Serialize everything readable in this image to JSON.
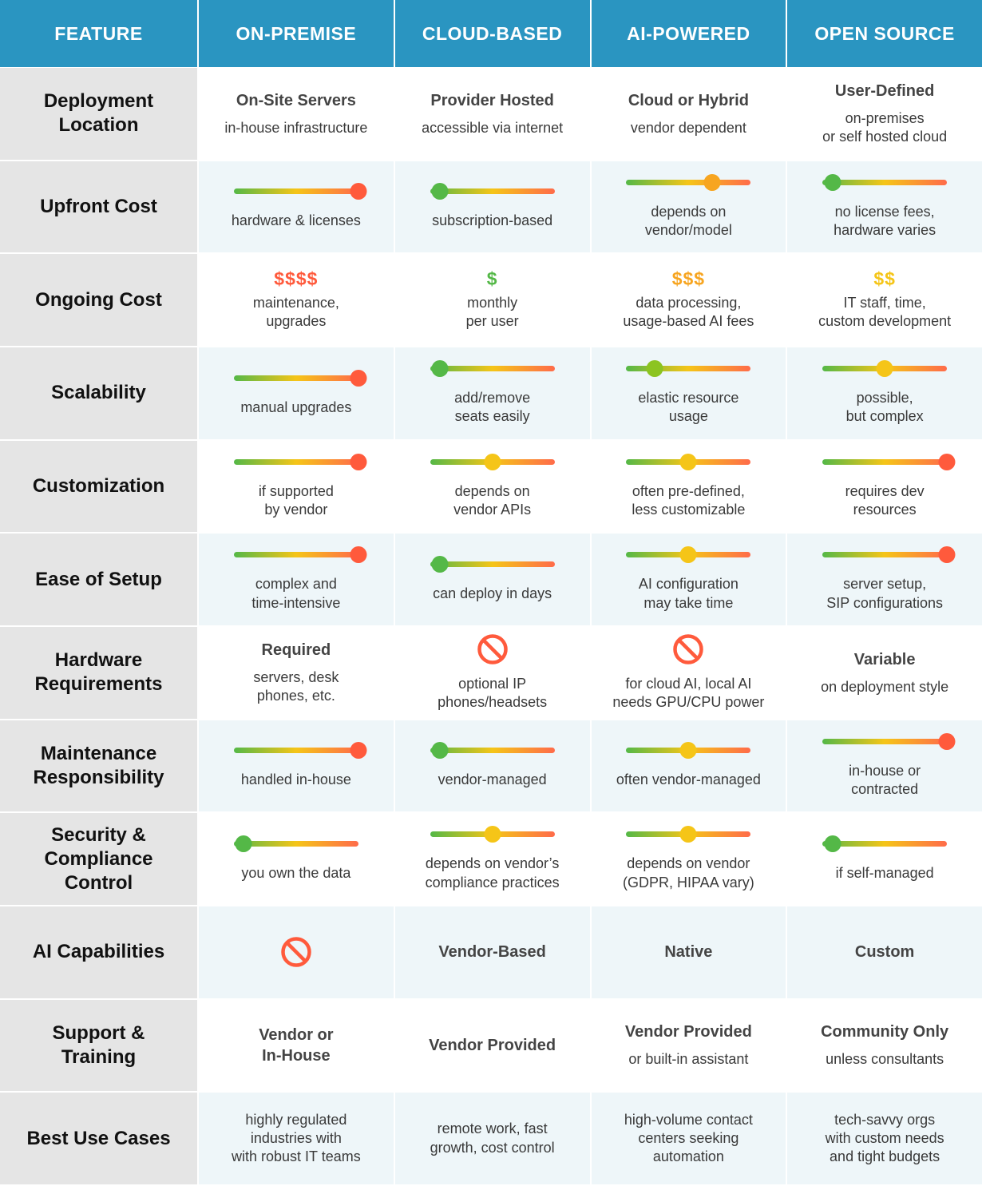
{
  "header": {
    "feature": "FEATURE",
    "columns": [
      "ON-PREMISE",
      "CLOUD-BASED",
      "AI-POWERED",
      "OPEN SOURCE"
    ]
  },
  "scale_colors": {
    "low": "#54b847",
    "mid": "#f5c518",
    "high": "#ff6b4a"
  },
  "rows": [
    {
      "feature": "Deployment\nLocation",
      "shade": "w",
      "cells": [
        {
          "type": "text",
          "title": "On-Site Servers",
          "desc": "in-house infrastructure"
        },
        {
          "type": "text",
          "title": "Provider Hosted",
          "desc": "accessible via internet"
        },
        {
          "type": "text",
          "title": "Cloud or Hybrid",
          "desc": "vendor dependent"
        },
        {
          "type": "text",
          "title": "User-Defined",
          "desc": "on-premises\nor self hosted cloud"
        }
      ]
    },
    {
      "feature": "Upfront Cost",
      "shade": "b",
      "cells": [
        {
          "type": "scale",
          "level": 1.0,
          "color": "#ff5a3c",
          "desc": "hardware & licenses"
        },
        {
          "type": "scale",
          "level": 0.08,
          "color": "#54b847",
          "desc": "subscription-based"
        },
        {
          "type": "scale",
          "level": 0.69,
          "color": "#f7a520",
          "desc": "depends on\nvendor/model"
        },
        {
          "type": "scale",
          "level": 0.08,
          "color": "#54b847",
          "desc": "no license fees,\nhardware varies"
        }
      ]
    },
    {
      "feature": "Ongoing Cost",
      "shade": "w",
      "cells": [
        {
          "type": "dollar",
          "dollars": "$$$$",
          "color": "#ff5a3c",
          "desc": "maintenance,\nupgrades"
        },
        {
          "type": "dollar",
          "dollars": "$",
          "color": "#54b847",
          "desc": "monthly\nper user"
        },
        {
          "type": "dollar",
          "dollars": "$$$",
          "color": "#f7a520",
          "desc": "data processing,\nusage-based AI fees"
        },
        {
          "type": "dollar",
          "dollars": "$$",
          "color": "#f5c518",
          "desc": "IT staff, time,\ncustom development"
        }
      ]
    },
    {
      "feature": "Scalability",
      "shade": "b",
      "cells": [
        {
          "type": "scale",
          "level": 1.0,
          "color": "#ff5a3c",
          "desc": "manual upgrades"
        },
        {
          "type": "scale",
          "level": 0.08,
          "color": "#54b847",
          "desc": "add/remove\nseats easily"
        },
        {
          "type": "scale",
          "level": 0.23,
          "color": "#8cc421",
          "desc": "elastic resource\nusage"
        },
        {
          "type": "scale",
          "level": 0.5,
          "color": "#f5c518",
          "desc": "possible,\nbut complex"
        }
      ]
    },
    {
      "feature": "Customization",
      "shade": "w",
      "cells": [
        {
          "type": "scale",
          "level": 1.0,
          "color": "#ff5a3c",
          "desc": "if supported\nby vendor"
        },
        {
          "type": "scale",
          "level": 0.5,
          "color": "#f5c518",
          "desc": "depends on\nvendor APIs"
        },
        {
          "type": "scale",
          "level": 0.5,
          "color": "#f5c518",
          "desc": "often pre-defined,\nless customizable"
        },
        {
          "type": "scale",
          "level": 1.0,
          "color": "#ff5a3c",
          "desc": "requires dev\nresources"
        }
      ]
    },
    {
      "feature": "Ease of Setup",
      "shade": "b",
      "cells": [
        {
          "type": "scale",
          "level": 1.0,
          "color": "#ff5a3c",
          "desc": "complex and\ntime-intensive"
        },
        {
          "type": "scale",
          "level": 0.08,
          "color": "#54b847",
          "desc": "can deploy in days"
        },
        {
          "type": "scale",
          "level": 0.5,
          "color": "#f5c518",
          "desc": "AI configuration\nmay take time"
        },
        {
          "type": "scale",
          "level": 1.0,
          "color": "#ff5a3c",
          "desc": "server setup,\nSIP configurations"
        }
      ]
    },
    {
      "feature": "Hardware\nRequirements",
      "shade": "w",
      "cells": [
        {
          "type": "text",
          "title": "Required",
          "desc": "servers, desk\nphones, etc."
        },
        {
          "type": "no",
          "desc": "optional IP\nphones/headsets"
        },
        {
          "type": "no",
          "desc": "for cloud AI, local AI\nneeds GPU/CPU power"
        },
        {
          "type": "text",
          "title": "Variable",
          "desc": "on deployment style"
        }
      ]
    },
    {
      "feature": "Maintenance\nResponsibility",
      "shade": "b",
      "cells": [
        {
          "type": "scale",
          "level": 1.0,
          "color": "#ff5a3c",
          "desc": "handled in-house"
        },
        {
          "type": "scale",
          "level": 0.08,
          "color": "#54b847",
          "desc": "vendor-managed"
        },
        {
          "type": "scale",
          "level": 0.5,
          "color": "#f5c518",
          "desc": "often vendor-managed"
        },
        {
          "type": "scale",
          "level": 1.0,
          "color": "#ff5a3c",
          "desc": "in-house or\ncontracted"
        }
      ]
    },
    {
      "feature": "Security &\nCompliance\nControl",
      "shade": "w",
      "cells": [
        {
          "type": "scale",
          "level": 0.08,
          "color": "#54b847",
          "desc": "you own the data"
        },
        {
          "type": "scale",
          "level": 0.5,
          "color": "#f5c518",
          "desc": "depends on vendor’s\ncompliance practices"
        },
        {
          "type": "scale",
          "level": 0.5,
          "color": "#f5c518",
          "desc": "depends on vendor\n(GDPR, HIPAA vary)"
        },
        {
          "type": "scale",
          "level": 0.08,
          "color": "#54b847",
          "desc": "if self-managed"
        }
      ]
    },
    {
      "feature": "AI Capabilities",
      "shade": "b",
      "cells": [
        {
          "type": "no",
          "desc": ""
        },
        {
          "type": "text",
          "title": "Vendor-Based",
          "desc": ""
        },
        {
          "type": "text",
          "title": "Native",
          "desc": ""
        },
        {
          "type": "text",
          "title": "Custom",
          "desc": ""
        }
      ]
    },
    {
      "feature": "Support &\nTraining",
      "shade": "w",
      "cells": [
        {
          "type": "text",
          "title": "Vendor or\nIn-House",
          "desc": ""
        },
        {
          "type": "text",
          "title": "Vendor Provided",
          "desc": ""
        },
        {
          "type": "text",
          "title": "Vendor Provided",
          "desc": "or built-in assistant"
        },
        {
          "type": "text",
          "title": "Community Only",
          "desc": "unless consultants"
        }
      ]
    },
    {
      "feature": "Best Use Cases",
      "shade": "b",
      "cells": [
        {
          "type": "text",
          "title": "",
          "desc": "highly regulated\nindustries with\nwith robust IT teams"
        },
        {
          "type": "text",
          "title": "",
          "desc": "remote work, fast\ngrowth, cost control"
        },
        {
          "type": "text",
          "title": "",
          "desc": "high-volume contact\ncenters seeking\nautomation"
        },
        {
          "type": "text",
          "title": "",
          "desc": "tech-savvy orgs\nwith custom needs\nand tight budgets"
        }
      ]
    }
  ]
}
